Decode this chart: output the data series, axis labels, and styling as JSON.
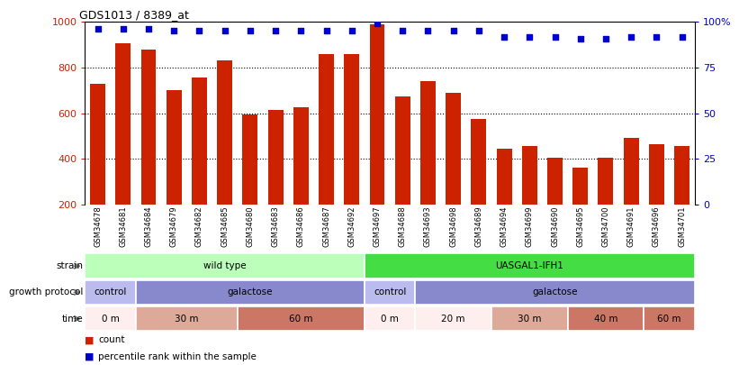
{
  "title": "GDS1013 / 8389_at",
  "samples": [
    "GSM34678",
    "GSM34681",
    "GSM34684",
    "GSM34679",
    "GSM34682",
    "GSM34685",
    "GSM34680",
    "GSM34683",
    "GSM34686",
    "GSM34687",
    "GSM34692",
    "GSM34697",
    "GSM34688",
    "GSM34693",
    "GSM34698",
    "GSM34689",
    "GSM34694",
    "GSM34699",
    "GSM34690",
    "GSM34695",
    "GSM34700",
    "GSM34691",
    "GSM34696",
    "GSM34701"
  ],
  "counts": [
    730,
    905,
    880,
    700,
    755,
    830,
    595,
    615,
    625,
    860,
    860,
    990,
    675,
    740,
    690,
    575,
    445,
    455,
    405,
    360,
    405,
    490,
    465,
    455
  ],
  "percentile_ranks": [
    96,
    96,
    96,
    95,
    95,
    95,
    95,
    95,
    95,
    95,
    95,
    99,
    95,
    95,
    95,
    95,
    92,
    92,
    92,
    91,
    91,
    92,
    92,
    92
  ],
  "bar_color": "#cc2200",
  "dot_color": "#0000cc",
  "ylim_left": [
    200,
    1000
  ],
  "ylim_right": [
    0,
    100
  ],
  "yticks_left": [
    200,
    400,
    600,
    800,
    1000
  ],
  "yticks_right": [
    0,
    25,
    50,
    75,
    100
  ],
  "grid_values": [
    400,
    600,
    800
  ],
  "strain_row": [
    {
      "label": "wild type",
      "start": 0,
      "end": 11,
      "color": "#bbffbb"
    },
    {
      "label": "UASGAL1-IFH1",
      "start": 11,
      "end": 24,
      "color": "#44dd44"
    }
  ],
  "growth_protocol_row": [
    {
      "label": "control",
      "start": 0,
      "end": 2,
      "color": "#bbbbee"
    },
    {
      "label": "galactose",
      "start": 2,
      "end": 11,
      "color": "#8888cc"
    },
    {
      "label": "control",
      "start": 11,
      "end": 13,
      "color": "#bbbbee"
    },
    {
      "label": "galactose",
      "start": 13,
      "end": 24,
      "color": "#8888cc"
    }
  ],
  "time_row": [
    {
      "label": "0 m",
      "start": 0,
      "end": 2,
      "color": "#ffeeee"
    },
    {
      "label": "30 m",
      "start": 2,
      "end": 6,
      "color": "#ddaa99"
    },
    {
      "label": "60 m",
      "start": 6,
      "end": 11,
      "color": "#cc7766"
    },
    {
      "label": "0 m",
      "start": 11,
      "end": 13,
      "color": "#ffeeee"
    },
    {
      "label": "20 m",
      "start": 13,
      "end": 16,
      "color": "#ffeeee"
    },
    {
      "label": "30 m",
      "start": 16,
      "end": 19,
      "color": "#ddaa99"
    },
    {
      "label": "40 m",
      "start": 19,
      "end": 22,
      "color": "#cc7766"
    },
    {
      "label": "60 m",
      "start": 22,
      "end": 24,
      "color": "#cc7766"
    }
  ],
  "legend_count_label": "count",
  "legend_pct_label": "percentile rank within the sample"
}
